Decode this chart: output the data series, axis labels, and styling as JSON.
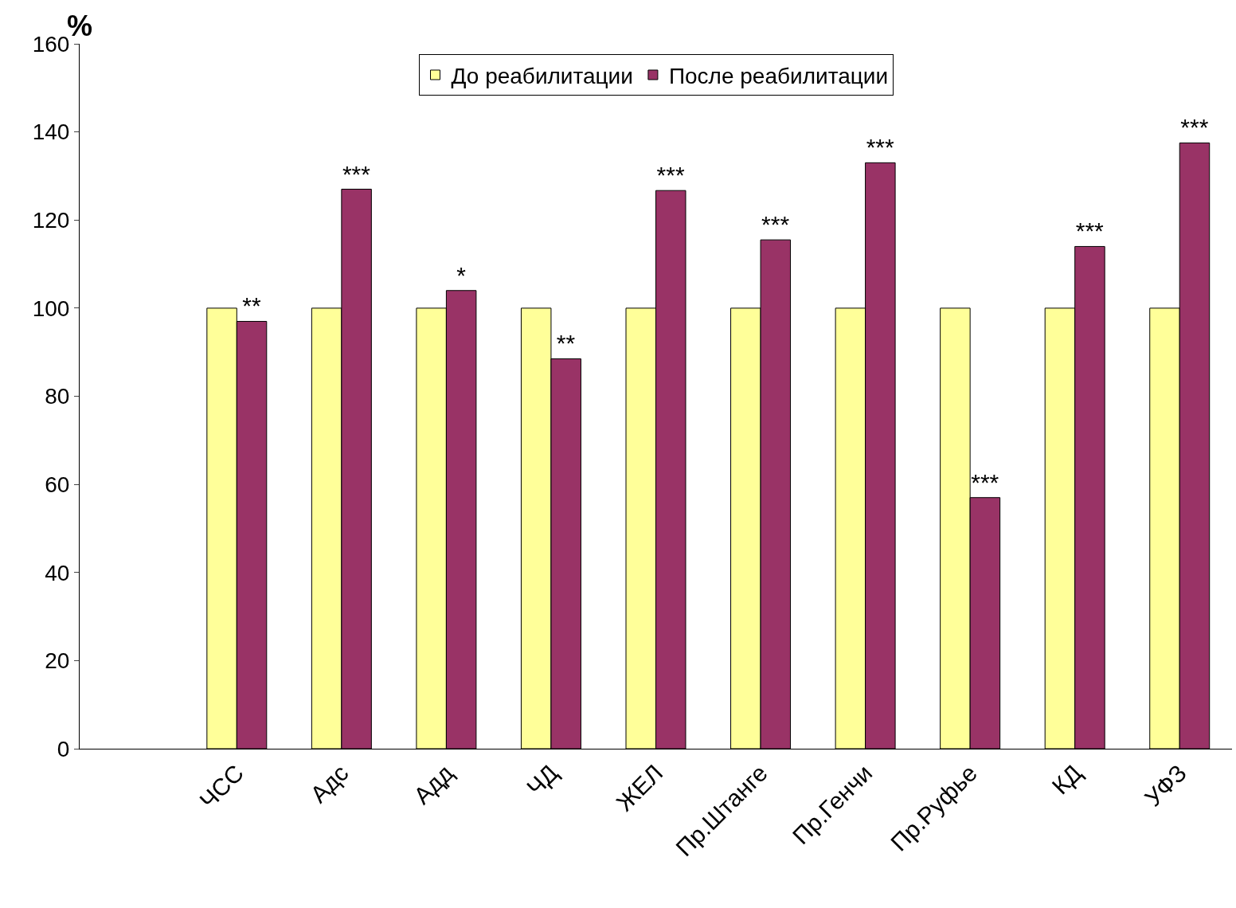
{
  "chart_data": {
    "type": "bar",
    "ylabel": "%",
    "categories": [
      null,
      "ЧСС",
      "Адс",
      "Адд",
      "ЧД",
      "ЖЕЛ",
      "Пр.Штанге",
      "Пр.Генчи",
      "Пр.Руфье",
      "КД",
      "УФЗ"
    ],
    "series": [
      {
        "name": "До реабилитации",
        "color": "#ffff99",
        "values": [
          null,
          100,
          100,
          100,
          100,
          100,
          100,
          100,
          100,
          100,
          100
        ]
      },
      {
        "name": "После реабилитации",
        "color": "#993366",
        "values": [
          null,
          97,
          127,
          104,
          88.5,
          126.7,
          115.5,
          133,
          57,
          114,
          137.5
        ],
        "value_labels": [
          null,
          "**",
          "***",
          "*",
          "**",
          "***",
          "***",
          "***",
          "***",
          "***",
          "***"
        ]
      }
    ],
    "ylim": [
      0,
      160
    ],
    "yticks": [
      0,
      20,
      40,
      60,
      80,
      100,
      120,
      140,
      160
    ],
    "grid": false,
    "legend": "top"
  }
}
